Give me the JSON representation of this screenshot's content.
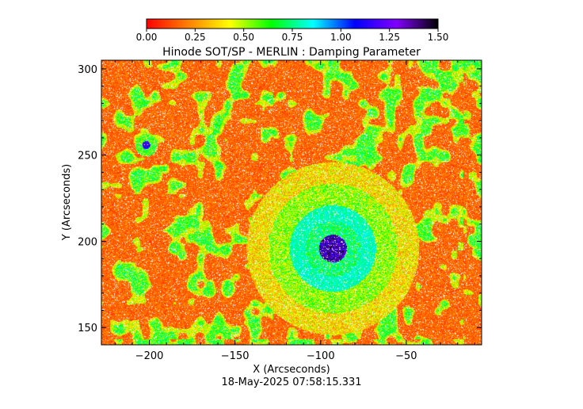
{
  "chart_data": {
    "type": "heatmap",
    "title": "Hinode SOT/SP - MERLIN : Damping Parameter",
    "xlabel": "X (Arcseconds)",
    "ylabel": "Y (Arcseconds)",
    "footer": "18-May-2025 07:58:15.331",
    "xlim": [
      -228,
      -6
    ],
    "ylim": [
      140,
      305
    ],
    "x_ticks": [
      {
        "value": -200,
        "label": "−200"
      },
      {
        "value": -150,
        "label": "−150"
      },
      {
        "value": -100,
        "label": "−100"
      },
      {
        "value": -50,
        "label": "−50"
      }
    ],
    "y_ticks": [
      {
        "value": 150,
        "label": "150"
      },
      {
        "value": 200,
        "label": "200"
      },
      {
        "value": 250,
        "label": "250"
      },
      {
        "value": 300,
        "label": "300"
      }
    ],
    "colorbar": {
      "range": [
        0.0,
        1.5
      ],
      "ticks": [
        {
          "value": 0.0,
          "label": "0.00"
        },
        {
          "value": 0.25,
          "label": "0.25"
        },
        {
          "value": 0.5,
          "label": "0.50"
        },
        {
          "value": 0.75,
          "label": "0.75"
        },
        {
          "value": 1.0,
          "label": "1.00"
        },
        {
          "value": 1.25,
          "label": "1.25"
        },
        {
          "value": 1.5,
          "label": "1.50"
        }
      ],
      "colors": [
        "#ff0000",
        "#ff8000",
        "#ffff00",
        "#00ff00",
        "#00ffff",
        "#0000ff",
        "#8000ff",
        "#000000"
      ]
    },
    "features": [
      {
        "kind": "sunspot",
        "x": -93,
        "y": 196,
        "radius": 18
      },
      {
        "kind": "pore",
        "x": -202,
        "y": 256,
        "radius": 6
      }
    ]
  }
}
